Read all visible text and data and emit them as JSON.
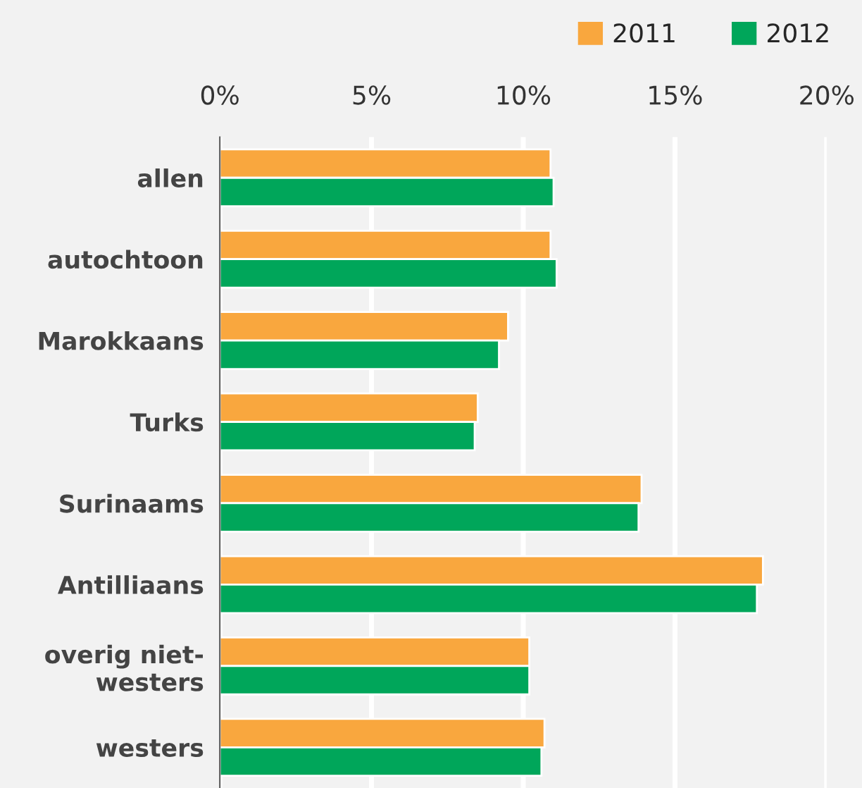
{
  "chart_data": {
    "type": "bar",
    "orientation": "horizontal",
    "categories": [
      "allen",
      "autochtoon",
      "Marokkaans",
      "Turks",
      "Surinaams",
      "Antilliaans",
      "overig niet-\nwesters",
      "westers"
    ],
    "series": [
      {
        "name": "2011",
        "color": "#f9a73e",
        "values": [
          10.9,
          10.9,
          9.5,
          8.5,
          13.9,
          17.9,
          10.2,
          10.7
        ]
      },
      {
        "name": "2012",
        "color": "#00a65a",
        "values": [
          11.0,
          11.1,
          9.2,
          8.4,
          13.8,
          17.7,
          10.2,
          10.6
        ]
      }
    ],
    "xlim": [
      0,
      20
    ],
    "xticks": [
      {
        "value": 0,
        "label": "0%"
      },
      {
        "value": 5,
        "label": "5%"
      },
      {
        "value": 10,
        "label": "10%"
      },
      {
        "value": 15,
        "label": "15%"
      },
      {
        "value": 20,
        "label": "20%"
      }
    ],
    "grid": "x",
    "legend": "top right"
  }
}
